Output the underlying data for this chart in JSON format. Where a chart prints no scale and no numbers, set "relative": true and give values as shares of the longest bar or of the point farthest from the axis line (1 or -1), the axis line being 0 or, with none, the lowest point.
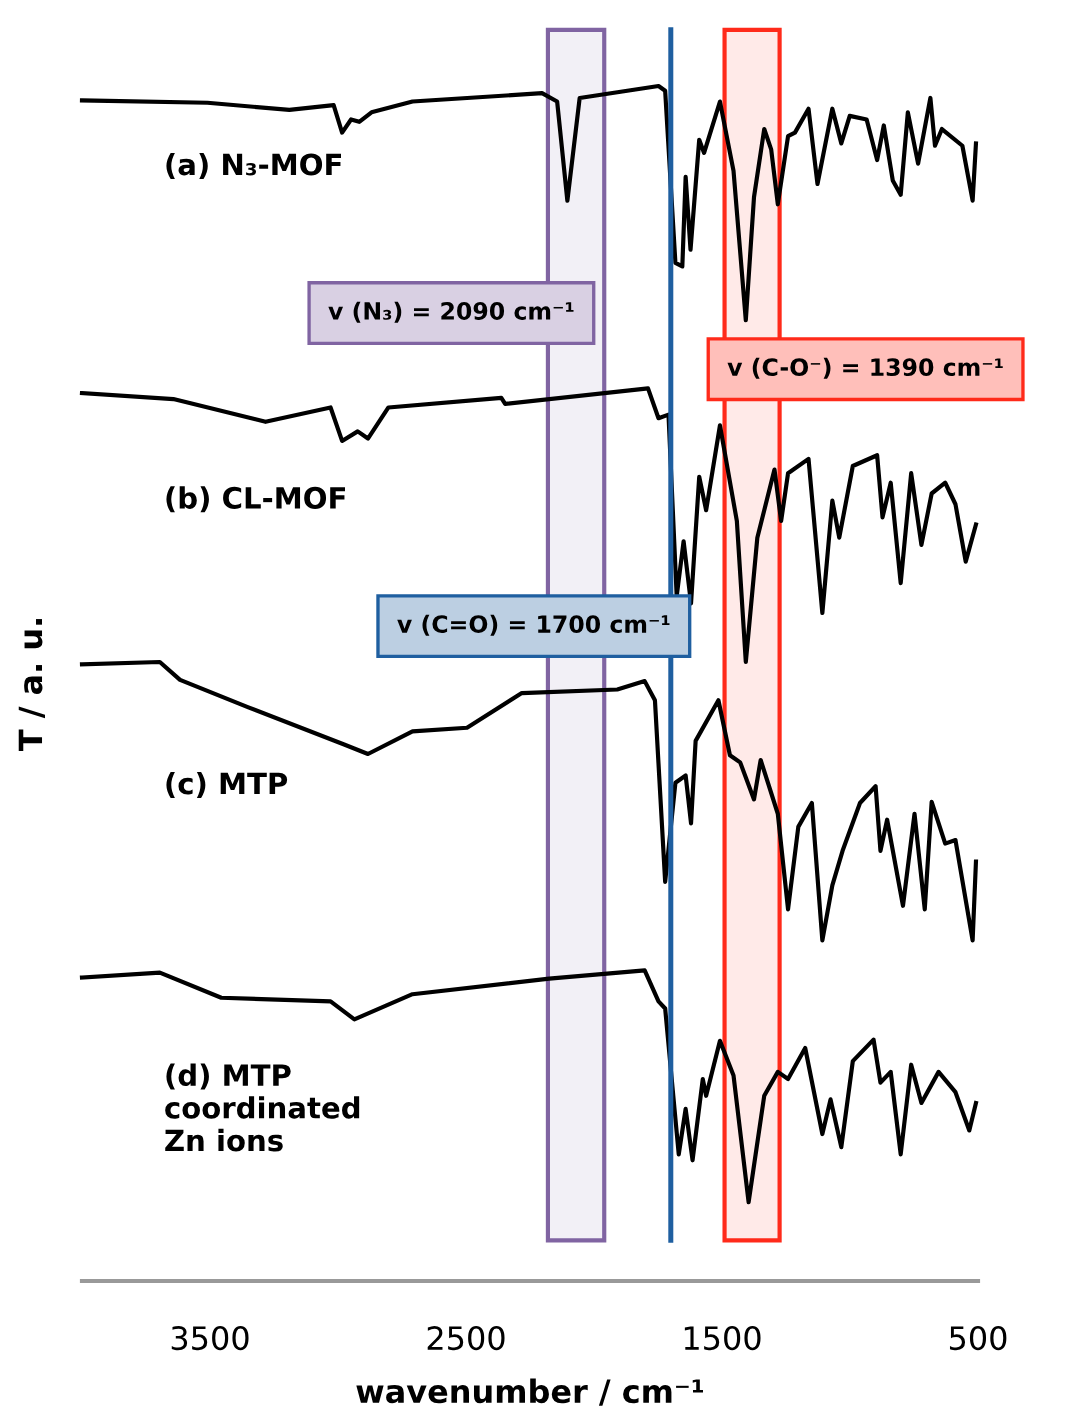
{
  "chart_data": {
    "type": "line",
    "relative": true,
    "xlabel": "wavenumber / cm⁻¹",
    "ylabel": "T / a. u.",
    "xlim": [
      4000,
      500
    ],
    "xticks": [
      3500,
      2500,
      1500,
      500
    ],
    "grid": false,
    "legend": false,
    "marker": "none",
    "line_style": "solid",
    "tick_labels": "x",
    "series": [
      {
        "name": "(a) N₃-MOF",
        "color": "#000000",
        "x": [
          4000,
          3510,
          3190,
          3017,
          2984,
          2949,
          2917,
          2869,
          2709,
          2203,
          2144,
          2104,
          2056,
          1748,
          1722,
          1682,
          1655,
          1642,
          1623,
          1589,
          1570,
          1508,
          1455,
          1407,
          1375,
          1335,
          1308,
          1282,
          1242,
          1215,
          1162,
          1127,
          1069,
          1034,
          1001,
          935,
          894,
          868,
          833,
          802,
          774,
          734,
          686,
          668,
          641,
          561,
          521,
          508
        ],
        "values": [
          0.988,
          0.986,
          0.98,
          0.984,
          0.961,
          0.972,
          0.97,
          0.978,
          0.987,
          0.994,
          0.987,
          0.904,
          0.99,
          1.0,
          0.996,
          0.852,
          0.849,
          0.924,
          0.863,
          0.955,
          0.944,
          0.987,
          0.929,
          0.804,
          0.907,
          0.964,
          0.947,
          0.901,
          0.958,
          0.961,
          0.981,
          0.918,
          0.981,
          0.952,
          0.975,
          0.972,
          0.938,
          0.967,
          0.921,
          0.909,
          0.978,
          0.935,
          0.99,
          0.95,
          0.964,
          0.95,
          0.904,
          0.952
        ]
      },
      {
        "name": "(b) CL-MOF",
        "color": "#000000",
        "x": [
          4000,
          3643,
          3283,
          3029,
          2984,
          2923,
          2883,
          2803,
          2362,
          2347,
          1789,
          1748,
          1709,
          1677,
          1650,
          1621,
          1589,
          1562,
          1508,
          1442,
          1407,
          1362,
          1295,
          1269,
          1242,
          1162,
          1108,
          1069,
          1042,
          989,
          894,
          873,
          841,
          802,
          761,
          721,
          681,
          628,
          588,
          548,
          508
        ],
        "values": [
          0.743,
          0.738,
          0.719,
          0.731,
          0.703,
          0.711,
          0.705,
          0.731,
          0.739,
          0.734,
          0.747,
          0.722,
          0.725,
          0.573,
          0.619,
          0.567,
          0.673,
          0.645,
          0.716,
          0.636,
          0.518,
          0.622,
          0.679,
          0.636,
          0.676,
          0.688,
          0.559,
          0.653,
          0.622,
          0.682,
          0.691,
          0.639,
          0.668,
          0.584,
          0.676,
          0.616,
          0.659,
          0.668,
          0.65,
          0.602,
          0.633
        ]
      },
      {
        "name": "(c) MTP",
        "color": "#000000",
        "x": [
          4000,
          3696,
          3617,
          3350,
          2976,
          2883,
          2709,
          2496,
          2282,
          1909,
          1802,
          1762,
          1722,
          1682,
          1642,
          1621,
          1603,
          1514,
          1469,
          1429,
          1375,
          1349,
          1282,
          1242,
          1202,
          1149,
          1108,
          1069,
          1029,
          961,
          900,
          881,
          855,
          793,
          748,
          708,
          681,
          628,
          588,
          521,
          508
        ],
        "values": [
          0.516,
          0.518,
          0.503,
          0.48,
          0.449,
          0.441,
          0.46,
          0.463,
          0.492,
          0.495,
          0.502,
          0.486,
          0.334,
          0.417,
          0.423,
          0.383,
          0.452,
          0.486,
          0.44,
          0.434,
          0.403,
          0.436,
          0.391,
          0.311,
          0.38,
          0.4,
          0.285,
          0.331,
          0.36,
          0.4,
          0.414,
          0.36,
          0.386,
          0.314,
          0.391,
          0.311,
          0.401,
          0.366,
          0.369,
          0.285,
          0.351
        ]
      },
      {
        "name": "(d) MTP\ncoordinated\nZn ions",
        "color": "#000000",
        "x": [
          4000,
          3696,
          3456,
          3029,
          2936,
          2709,
          2175,
          1802,
          1748,
          1722,
          1669,
          1642,
          1615,
          1575,
          1562,
          1508,
          1455,
          1396,
          1335,
          1282,
          1242,
          1175,
          1108,
          1076,
          1034,
          989,
          908,
          881,
          841,
          802,
          761,
          721,
          654,
          588,
          534,
          508
        ],
        "values": [
          0.254,
          0.258,
          0.237,
          0.234,
          0.219,
          0.24,
          0.253,
          0.26,
          0.234,
          0.228,
          0.106,
          0.144,
          0.101,
          0.169,
          0.155,
          0.201,
          0.172,
          0.066,
          0.155,
          0.175,
          0.169,
          0.195,
          0.123,
          0.152,
          0.112,
          0.184,
          0.202,
          0.166,
          0.175,
          0.106,
          0.181,
          0.149,
          0.175,
          0.158,
          0.126,
          0.149
        ]
      }
    ],
    "bands": [
      {
        "axis": "x",
        "from": 2180,
        "to": 1960,
        "label": "v (N₃) = 2090 cm⁻¹",
        "color": "#8064a2"
      },
      {
        "axis": "x",
        "from": 1490,
        "to": 1275,
        "label": "v (C-O⁻) = 1390 cm⁻¹",
        "color": "#ff2a1a"
      }
    ],
    "ref_lines": [
      {
        "axis": "x",
        "value": 1700,
        "label": "v (C=O) = 1700 cm⁻¹",
        "color": "#1f5fa0",
        "line_style": "solid"
      }
    ]
  }
}
